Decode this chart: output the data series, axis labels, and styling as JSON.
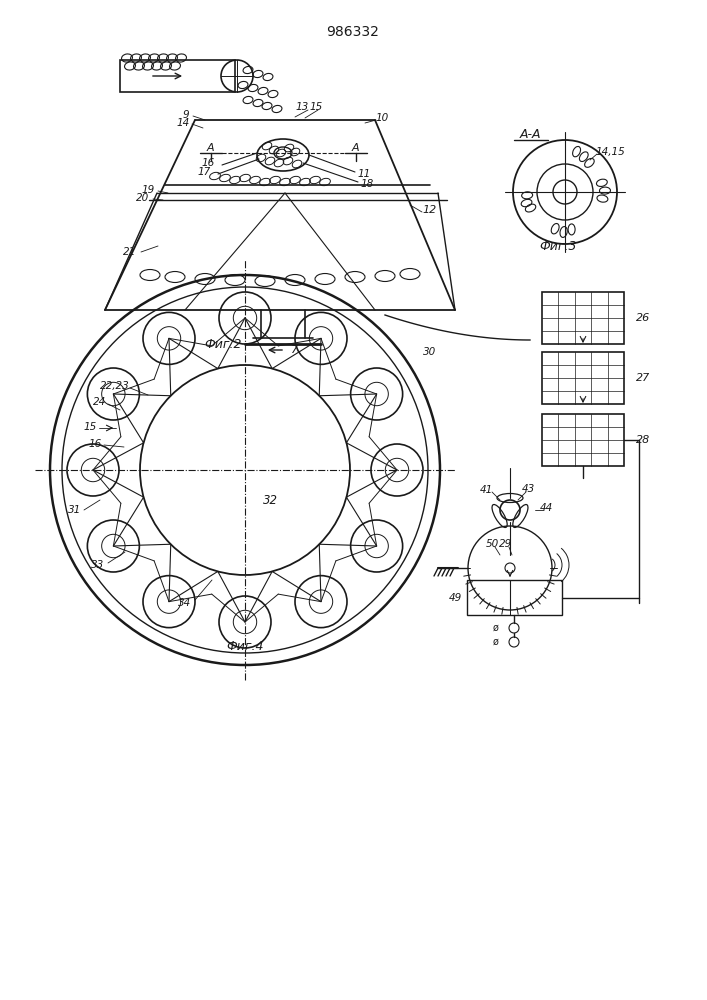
{
  "title": "986332",
  "bg_color": "#ffffff",
  "line_color": "#1a1a1a",
  "fig2_label": "Фиг.2",
  "fig3_label": "Фиг.3",
  "fig4_label": "Фиг.4",
  "aa_label": "А-А"
}
